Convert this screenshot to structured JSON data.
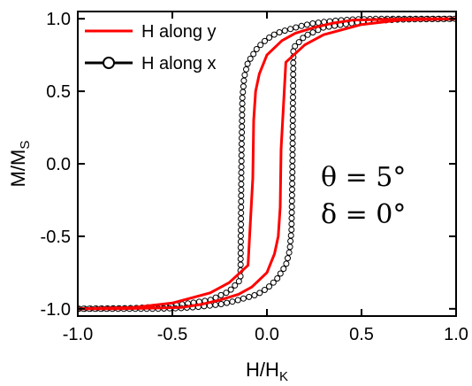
{
  "chart_data": {
    "type": "line",
    "xlabel": "H/H",
    "xlabel_sub": "K",
    "ylabel": "M/M",
    "ylabel_sub": "S",
    "xlim": [
      -1.0,
      1.0
    ],
    "ylim": [
      -1.05,
      1.05
    ],
    "xticks": [
      -1.0,
      -0.5,
      0.0,
      0.5,
      1.0
    ],
    "xtick_labels": [
      "-1.0",
      "-0.5",
      "0.0",
      "0.5",
      "1.0"
    ],
    "yticks": [
      -1.0,
      -0.5,
      0.0,
      0.5,
      1.0
    ],
    "ytick_labels": [
      "-1.0",
      "-0.5",
      "0.0",
      "0.5",
      "1.0"
    ],
    "legend_position": "top-left",
    "annotations": [
      "θ = 5°",
      "δ = 0°"
    ],
    "series": [
      {
        "name": "H along y",
        "color": "#ff0000",
        "marker": "none",
        "descending_branch": {
          "x": [
            1.0,
            0.8,
            0.6,
            0.45,
            0.35,
            0.25,
            0.15,
            0.08,
            0.0,
            -0.04,
            -0.06,
            -0.07,
            -0.075,
            -0.1,
            -0.2,
            -0.3,
            -0.5,
            -0.7,
            -1.0
          ],
          "y": [
            1.0,
            1.0,
            0.995,
            0.99,
            0.97,
            0.94,
            0.9,
            0.85,
            0.75,
            0.62,
            0.5,
            0.3,
            -0.1,
            -0.7,
            -0.82,
            -0.89,
            -0.96,
            -0.99,
            -1.0
          ]
        },
        "ascending_branch": {
          "x": [
            -1.0,
            -0.8,
            -0.6,
            -0.45,
            -0.35,
            -0.25,
            -0.15,
            -0.08,
            0.0,
            0.04,
            0.06,
            0.07,
            0.075,
            0.1,
            0.2,
            0.3,
            0.5,
            0.7,
            1.0
          ],
          "y": [
            -1.0,
            -1.0,
            -0.995,
            -0.99,
            -0.97,
            -0.94,
            -0.9,
            -0.85,
            -0.75,
            -0.62,
            -0.5,
            -0.3,
            0.1,
            0.7,
            0.82,
            0.89,
            0.96,
            0.99,
            1.0
          ]
        }
      },
      {
        "name": "H along x",
        "color": "#000000",
        "marker": "open-circle",
        "descending_branch": {
          "x": [
            1.0,
            0.8,
            0.6,
            0.45,
            0.35,
            0.25,
            0.18,
            0.1,
            0.05,
            0.0,
            -0.05,
            -0.1,
            -0.12,
            -0.13,
            -0.135,
            -0.14,
            -0.2,
            -0.3,
            -0.5,
            -0.7,
            -1.0
          ],
          "y": [
            1.0,
            1.0,
            1.0,
            0.995,
            0.985,
            0.97,
            0.95,
            0.92,
            0.9,
            0.86,
            0.8,
            0.7,
            0.6,
            0.45,
            0.0,
            -0.8,
            -0.88,
            -0.94,
            -0.98,
            -0.995,
            -1.0
          ]
        },
        "ascending_branch": {
          "x": [
            -1.0,
            -0.8,
            -0.6,
            -0.45,
            -0.35,
            -0.25,
            -0.18,
            -0.1,
            -0.05,
            0.0,
            0.05,
            0.1,
            0.12,
            0.13,
            0.135,
            0.14,
            0.2,
            0.3,
            0.5,
            0.7,
            1.0
          ],
          "y": [
            -1.0,
            -1.0,
            -1.0,
            -0.995,
            -0.985,
            -0.97,
            -0.95,
            -0.92,
            -0.9,
            -0.86,
            -0.8,
            -0.7,
            -0.6,
            -0.45,
            0.0,
            0.8,
            0.88,
            0.94,
            0.98,
            0.995,
            1.0
          ]
        }
      }
    ]
  }
}
